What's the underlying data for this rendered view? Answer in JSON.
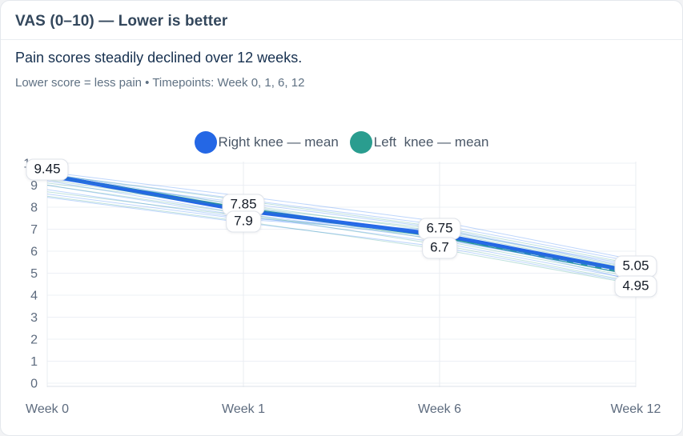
{
  "header": {
    "title": "VAS (0–10) — Lower is better",
    "subtitle": "Pain scores steadily declined over 12 weeks.",
    "caption": "Lower score = less pain • Timepoints: Week 0, 1, 6, 12"
  },
  "legend": [
    {
      "label": "Right knee — mean",
      "color": "#2467e5"
    },
    {
      "label": "Left  knee — mean",
      "color": "#2a9d8f"
    }
  ],
  "chart_data": {
    "type": "line",
    "categories": [
      "Week 0",
      "Week 1",
      "Week 6",
      "Week 12"
    ],
    "y_ticks": [
      0,
      1,
      2,
      3,
      4,
      5,
      6,
      7,
      8,
      9,
      10
    ],
    "ylim": [
      0,
      10
    ],
    "grid": "on",
    "legend_position": "top-center",
    "series": [
      {
        "name": "Right knee — mean",
        "color": "#2467e5",
        "style": "solid",
        "values": [
          9.45,
          7.85,
          6.75,
          5.05
        ]
      },
      {
        "name": "Left knee — mean",
        "color": "#2a9d8f",
        "style": "dashed",
        "values": [
          9.45,
          7.9,
          6.7,
          4.95
        ]
      }
    ],
    "individual_lines": {
      "right": {
        "color": "#3b82f6",
        "lines": [
          [
            9.6,
            8.5,
            7.35,
            5.6
          ],
          [
            9.3,
            8.2,
            7.05,
            5.25
          ],
          [
            9.55,
            8.05,
            6.6,
            4.9
          ],
          [
            9.0,
            7.6,
            6.4,
            4.7
          ],
          [
            8.8,
            7.5,
            6.95,
            5.35
          ],
          [
            8.45,
            7.3,
            6.2,
            4.55
          ],
          [
            9.2,
            7.7,
            6.55,
            5.0
          ],
          [
            9.5,
            8.35,
            7.2,
            5.5
          ],
          [
            8.6,
            7.45,
            6.85,
            4.65
          ]
        ]
      },
      "left": {
        "color": "#2a9d8f",
        "lines": [
          [
            9.5,
            8.3,
            7.1,
            5.4
          ],
          [
            9.25,
            7.95,
            6.5,
            4.8
          ],
          [
            9.0,
            7.7,
            6.3,
            4.6
          ],
          [
            8.7,
            7.6,
            6.65,
            5.05
          ],
          [
            9.4,
            8.1,
            6.9,
            5.15
          ],
          [
            8.5,
            7.35,
            6.1,
            4.5
          ],
          [
            9.1,
            8.0,
            7.0,
            5.2
          ]
        ]
      }
    },
    "point_labels": [
      {
        "text": "9.45",
        "week": 0,
        "value": 9.45,
        "row": "above"
      },
      {
        "text": "7.85",
        "week": 1,
        "value": 7.85,
        "row": "above"
      },
      {
        "text": "7.9",
        "week": 1,
        "value": 7.9,
        "row": "below"
      },
      {
        "text": "6.75",
        "week": 2,
        "value": 6.75,
        "row": "above"
      },
      {
        "text": "6.7",
        "week": 2,
        "value": 6.7,
        "row": "below"
      },
      {
        "text": "5.05",
        "week": 3,
        "value": 5.05,
        "row": "above"
      },
      {
        "text": "4.95",
        "week": 3,
        "value": 4.95,
        "row": "below"
      }
    ]
  }
}
